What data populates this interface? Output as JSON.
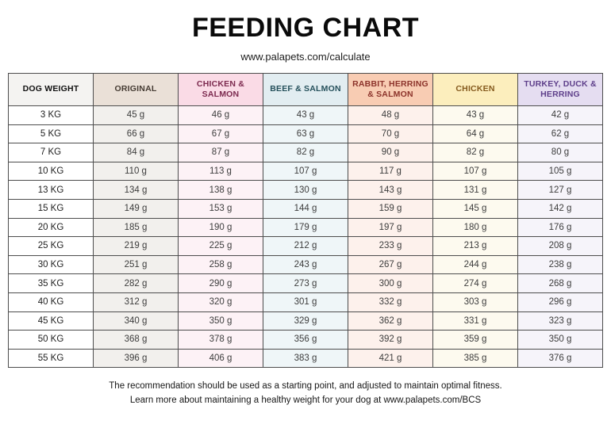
{
  "title": "FEEDING CHART",
  "subtitle": "www.palapets.com/calculate",
  "footer": {
    "line1": "The recommendation should be used as a starting point, and adjusted to maintain optimal fitness.",
    "line2": "Learn more about maintaining a healthy weight for your dog at www.palapets.com/BCS"
  },
  "chart_data": {
    "type": "table",
    "title": "FEEDING CHART",
    "unit": "grams per day",
    "columns": [
      {
        "key": "dog-weight",
        "label": "DOG WEIGHT",
        "header_bg": "#f4f3f1",
        "header_color": "#111111",
        "cell_bg": "#ffffff"
      },
      {
        "key": "original",
        "label": "ORIGINAL",
        "header_bg": "#eae0d7",
        "header_color": "#453b33",
        "cell_bg": "#f2f0ed"
      },
      {
        "key": "chicken-salmon",
        "label": "CHICKEN & SALMON",
        "header_bg": "#fadbe6",
        "header_color": "#7c2a4f",
        "cell_bg": "#fdf2f6"
      },
      {
        "key": "beef-salmon",
        "label": "BEEF & SALMON",
        "header_bg": "#e2edf1",
        "header_color": "#25505b",
        "cell_bg": "#eff6f8"
      },
      {
        "key": "rabbit-herring-salmon",
        "label": "RABBIT, HERRING & SALMON",
        "header_bg": "#f8ccb3",
        "header_color": "#8c332b",
        "cell_bg": "#fdf1ec"
      },
      {
        "key": "chicken",
        "label": "CHICKEN",
        "header_bg": "#fceebd",
        "header_color": "#855a1e",
        "cell_bg": "#fdfaef"
      },
      {
        "key": "turkey-duck-herring",
        "label": "TURKEY, DUCK & HERRING",
        "header_bg": "#e5ddf1",
        "header_color": "#5e3f8a",
        "cell_bg": "#f6f4fa"
      }
    ],
    "rows": [
      {
        "weight": "3 KG",
        "values": [
          "45 g",
          "46 g",
          "43 g",
          "48 g",
          "43 g",
          "42 g"
        ]
      },
      {
        "weight": "5 KG",
        "values": [
          "66 g",
          "67 g",
          "63 g",
          "70 g",
          "64 g",
          "62 g"
        ]
      },
      {
        "weight": "7 KG",
        "values": [
          "84 g",
          "87 g",
          "82 g",
          "90 g",
          "82 g",
          "80 g"
        ]
      },
      {
        "weight": "10 KG",
        "values": [
          "110 g",
          "113 g",
          "107 g",
          "117 g",
          "107 g",
          "105 g"
        ]
      },
      {
        "weight": "13 KG",
        "values": [
          "134 g",
          "138 g",
          "130 g",
          "143 g",
          "131 g",
          "127 g"
        ]
      },
      {
        "weight": "15 KG",
        "values": [
          "149 g",
          "153 g",
          "144 g",
          "159 g",
          "145 g",
          "142 g"
        ]
      },
      {
        "weight": "20 KG",
        "values": [
          "185 g",
          "190 g",
          "179 g",
          "197 g",
          "180 g",
          "176 g"
        ]
      },
      {
        "weight": "25 KG",
        "values": [
          "219 g",
          "225 g",
          "212 g",
          "233 g",
          "213 g",
          "208 g"
        ]
      },
      {
        "weight": "30 KG",
        "values": [
          "251 g",
          "258 g",
          "243 g",
          "267 g",
          "244 g",
          "238 g"
        ]
      },
      {
        "weight": "35 KG",
        "values": [
          "282 g",
          "290 g",
          "273 g",
          "300 g",
          "274 g",
          "268 g"
        ]
      },
      {
        "weight": "40 KG",
        "values": [
          "312 g",
          "320 g",
          "301 g",
          "332 g",
          "303 g",
          "296 g"
        ]
      },
      {
        "weight": "45 KG",
        "values": [
          "340 g",
          "350 g",
          "329 g",
          "362 g",
          "331 g",
          "323 g"
        ]
      },
      {
        "weight": "50 KG",
        "values": [
          "368 g",
          "378 g",
          "356 g",
          "392 g",
          "359 g",
          "350 g"
        ]
      },
      {
        "weight": "55 KG",
        "values": [
          "396 g",
          "406 g",
          "383 g",
          "421 g",
          "385 g",
          "376 g"
        ]
      }
    ]
  }
}
